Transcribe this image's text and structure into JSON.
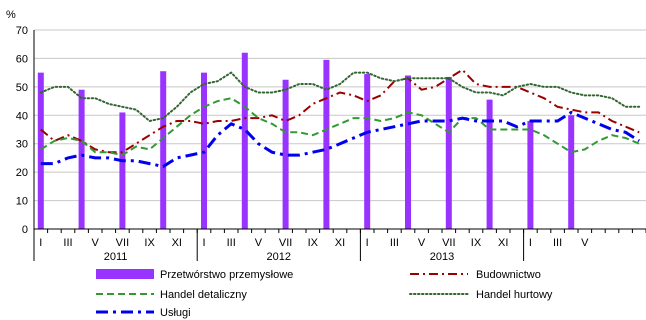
{
  "chart_data": {
    "type": "bar+line",
    "ylabel": "%",
    "ylim": [
      0,
      70
    ],
    "yticks": [
      0,
      10,
      20,
      30,
      40,
      50,
      60,
      70
    ],
    "x_tick_labels": [
      "I",
      "III",
      "V",
      "VII",
      "IX",
      "XI",
      "I",
      "III",
      "V",
      "VII",
      "IX",
      "XI",
      "I",
      "III",
      "V",
      "VII",
      "IX",
      "XI",
      "I",
      "III",
      "V"
    ],
    "years": [
      {
        "label": "2011",
        "center_month": 6
      },
      {
        "label": "2012",
        "center_month": 18
      },
      {
        "label": "2013",
        "center_month": 30
      }
    ],
    "legend_placement": "bottom",
    "series": [
      {
        "name": "Przetwórstwo przemysłowe",
        "kind": "bar",
        "color": "#9933ff",
        "month_indices": [
          0,
          3,
          6,
          9,
          12,
          15,
          18,
          21,
          24,
          27,
          30,
          33,
          36,
          39
        ],
        "values": [
          55,
          49,
          41,
          55.5,
          55,
          62,
          52.5,
          59.5,
          54.5,
          54,
          53.5,
          45.5,
          38,
          40
        ]
      },
      {
        "name": "Budownictwo",
        "kind": "line",
        "style": "dashdot",
        "color": "#990000",
        "values": [
          35,
          31,
          33,
          31,
          28,
          27,
          27,
          30,
          33,
          36,
          38,
          38,
          37,
          38,
          38,
          39,
          39,
          40,
          38,
          40,
          44,
          46,
          48,
          47,
          45,
          47,
          52,
          53,
          49,
          50,
          53,
          56,
          51,
          50,
          50,
          50,
          48,
          46,
          43,
          42,
          41,
          41,
          38,
          36,
          34
        ]
      },
      {
        "name": "Handel detaliczny",
        "kind": "line",
        "style": "dashed",
        "color": "#339933",
        "values": [
          28,
          31,
          32,
          31,
          27,
          27,
          26,
          29,
          28,
          32,
          36,
          40,
          43,
          45,
          46,
          43,
          39,
          37,
          34,
          34,
          33,
          35,
          37,
          39,
          39,
          38,
          39,
          41,
          40,
          37,
          34,
          39,
          39,
          35,
          35,
          35,
          35,
          33,
          30,
          27,
          28,
          31,
          33,
          32,
          30
        ]
      },
      {
        "name": "Handel hurtowy",
        "kind": "line",
        "style": "dotted",
        "color": "#336633",
        "values": [
          48,
          50,
          50,
          46,
          46,
          44,
          43,
          42,
          38,
          39,
          43,
          48,
          51,
          52,
          55,
          50,
          48,
          48,
          49,
          51,
          51,
          49,
          51,
          55,
          55,
          53,
          52,
          53,
          53,
          53,
          53,
          50,
          48,
          48,
          47,
          50,
          51,
          50,
          50,
          48,
          47,
          47,
          46,
          43,
          43
        ]
      },
      {
        "name": "Usługi",
        "kind": "line",
        "style": "longdashdot",
        "color": "#0000ee",
        "values": [
          23,
          23,
          25,
          26,
          25,
          25,
          24,
          24,
          23,
          22,
          25,
          26,
          27,
          33,
          37,
          35,
          30,
          27,
          26,
          26,
          27,
          28,
          30,
          32,
          34,
          35,
          36,
          37,
          38,
          38,
          38,
          39,
          38,
          38,
          38,
          36,
          38,
          38,
          38,
          41,
          39,
          37,
          35,
          34,
          31
        ]
      }
    ]
  }
}
